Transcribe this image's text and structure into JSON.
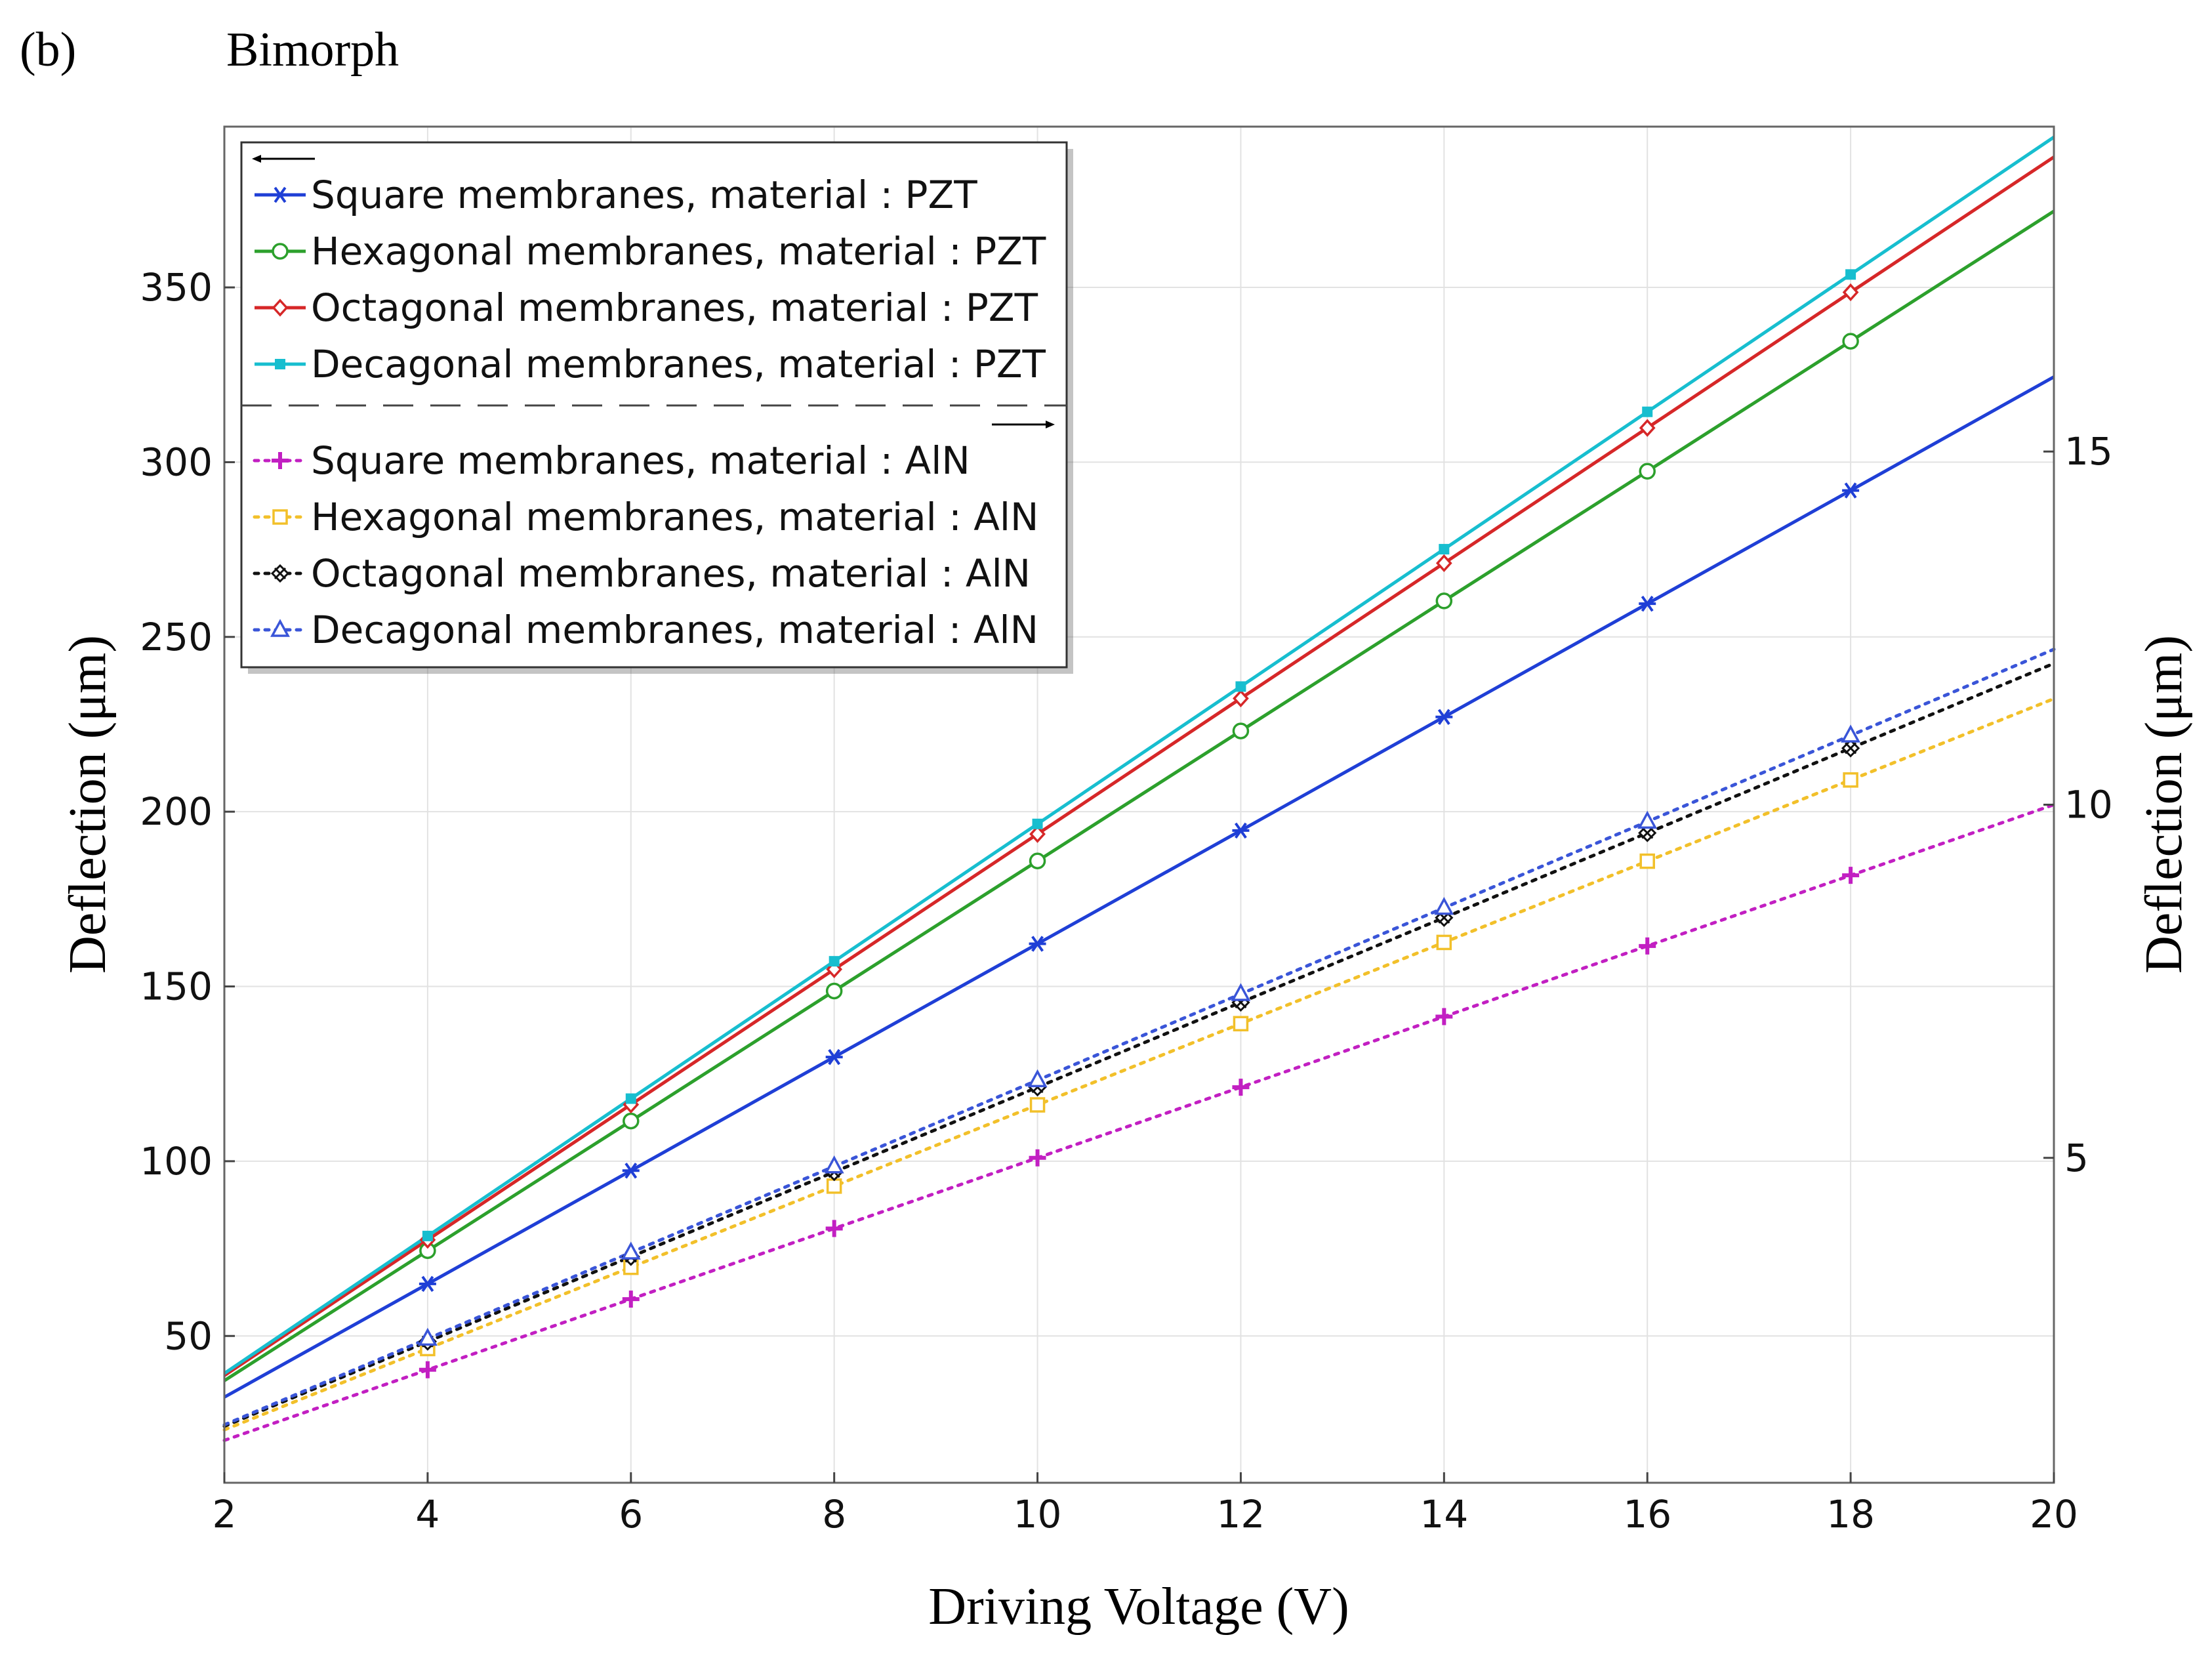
{
  "panel_label": "(b)",
  "chart_data": {
    "type": "line",
    "title": "Bimorph",
    "xlabel": "Driving Voltage (V)",
    "ylabel_left": "Deflection (μm)",
    "ylabel_right": "Deflection (μm)",
    "xlim": [
      2,
      20
    ],
    "ylim_left": [
      8,
      396
    ],
    "ylim_right": [
      0.4,
      19.6
    ],
    "x_ticks": [
      2,
      4,
      6,
      8,
      10,
      12,
      14,
      16,
      18,
      20
    ],
    "y_ticks_left": [
      50,
      100,
      150,
      200,
      250,
      300,
      350
    ],
    "y_ticks_right": [
      5,
      10,
      15
    ],
    "grid": true,
    "legend_position": "top-left",
    "legend_left_arrow": "←",
    "legend_right_arrow": "→",
    "x": [
      2,
      4,
      6,
      8,
      10,
      12,
      14,
      16,
      18,
      20
    ],
    "series": [
      {
        "name": "Square membranes, material : PZT",
        "axis": "left",
        "color": "#1f3fd6",
        "marker": "asterisk",
        "dash": "solid",
        "values": [
          32.5,
          64.9,
          97.3,
          129.8,
          162.2,
          194.6,
          227.1,
          259.5,
          291.9,
          324.4
        ]
      },
      {
        "name": "Hexagonal membranes, material : PZT",
        "axis": "left",
        "color": "#2ca02c",
        "marker": "circle",
        "dash": "solid",
        "values": [
          37.2,
          74.4,
          111.5,
          148.7,
          185.9,
          223.1,
          260.3,
          297.4,
          334.6,
          371.8
        ]
      },
      {
        "name": "Octagonal membranes, material : PZT",
        "axis": "left",
        "color": "#d62728",
        "marker": "diamond",
        "dash": "solid",
        "values": [
          38.7,
          77.5,
          116.2,
          154.9,
          193.6,
          232.4,
          271.1,
          309.8,
          348.6,
          387.3
        ]
      },
      {
        "name": "Decagonal membranes, material : PZT",
        "axis": "left",
        "color": "#17becf",
        "marker": "square-filled",
        "dash": "solid",
        "values": [
          39.3,
          78.6,
          117.9,
          157.2,
          196.5,
          235.8,
          275.1,
          314.4,
          353.7,
          393.0
        ]
      },
      {
        "name": "Square membranes, material : AlN",
        "axis": "right",
        "color": "#c21fc2",
        "marker": "plus",
        "dash": "dotted",
        "values": [
          1.0,
          2.0,
          3.0,
          4.0,
          5.0,
          6.0,
          7.0,
          8.0,
          9.0,
          10.0
        ]
      },
      {
        "name": "Hexagonal membranes, material : AlN",
        "axis": "right",
        "color": "#f2c02a",
        "marker": "square-open",
        "dash": "dotted",
        "values": [
          1.15,
          2.3,
          3.45,
          4.6,
          5.75,
          6.9,
          8.05,
          9.2,
          10.35,
          11.5
        ]
      },
      {
        "name": "Octagonal membranes, material : AlN",
        "axis": "right",
        "color": "#111111",
        "marker": "star",
        "dash": "dotted",
        "values": [
          1.2,
          2.4,
          3.6,
          4.8,
          6.0,
          7.2,
          8.4,
          9.6,
          10.8,
          12.0
        ]
      },
      {
        "name": "Decagonal membranes, material : AlN",
        "axis": "right",
        "color": "#3a55d8",
        "marker": "triangle",
        "dash": "dotted",
        "values": [
          1.22,
          2.44,
          3.66,
          4.88,
          6.1,
          7.32,
          8.54,
          9.76,
          10.98,
          12.2
        ]
      }
    ]
  }
}
